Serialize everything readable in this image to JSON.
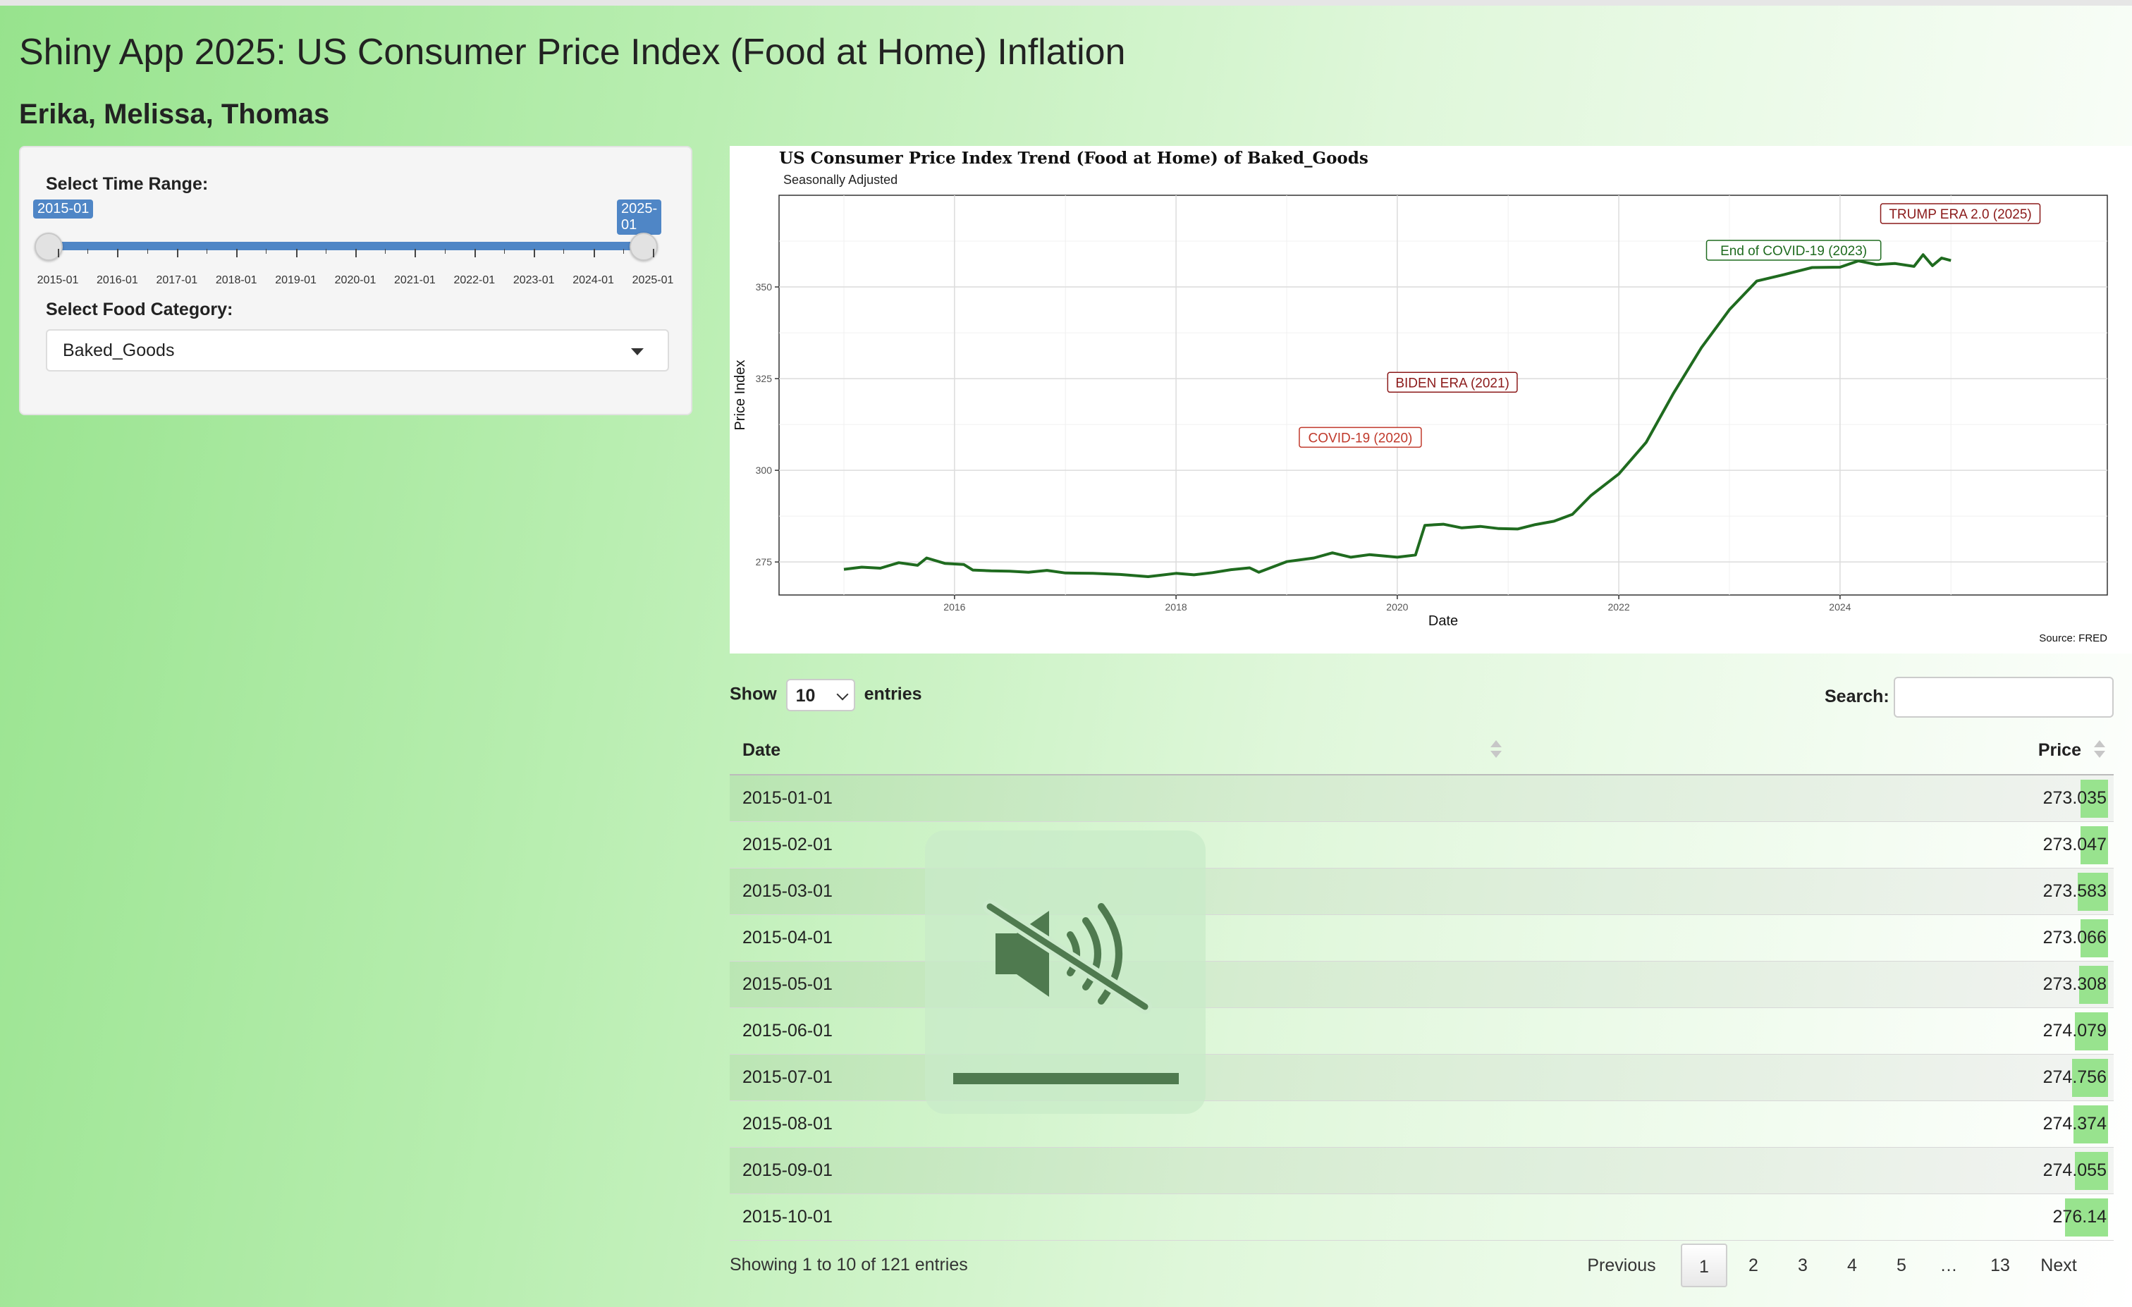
{
  "app": {
    "title": "Shiny App 2025: US Consumer Price Index (Food at Home) Inflation",
    "authors": "Erika, Melissa, Thomas"
  },
  "sidebar": {
    "time_range_label": "Select Time Range:",
    "range_start": "2015-01",
    "range_end": "2025-01",
    "tick_labels": [
      "2015-01",
      "2016-01",
      "2017-01",
      "2018-01",
      "2019-01",
      "2020-01",
      "2021-01",
      "2022-01",
      "2023-01",
      "2024-01",
      "2025-01"
    ],
    "category_label": "Select Food Category:",
    "category_value": "Baked_Goods",
    "accent_color": "#4f86c6"
  },
  "chart_data": {
    "type": "line",
    "title": "US Consumer Price Index Trend (Food at Home) of Baked_Goods",
    "subtitle": "Seasonally Adjusted",
    "xlabel": "Date",
    "ylabel": "Price Index",
    "caption": "Source: FRED",
    "x_ticks": [
      "2016",
      "2018",
      "2020",
      "2022",
      "2024"
    ],
    "y_ticks": [
      275,
      300,
      325,
      350
    ],
    "xlim": [
      "2014-06-01",
      "2026-06-01"
    ],
    "ylim": [
      266,
      375
    ],
    "grid": true,
    "line_color": "#1f6b1f",
    "series": [
      {
        "values": [
          [
            "2015-01-01",
            273.0
          ],
          [
            "2015-03-01",
            273.6
          ],
          [
            "2015-05-01",
            273.3
          ],
          [
            "2015-07-01",
            274.8
          ],
          [
            "2015-09-01",
            274.1
          ],
          [
            "2015-10-01",
            276.1
          ],
          [
            "2015-12-01",
            274.6
          ],
          [
            "2016-02-01",
            274.3
          ],
          [
            "2016-03-01",
            272.8
          ],
          [
            "2016-05-01",
            272.6
          ],
          [
            "2016-07-01",
            272.5
          ],
          [
            "2016-09-01",
            272.2
          ],
          [
            "2016-11-01",
            272.7
          ],
          [
            "2017-01-01",
            272.0
          ],
          [
            "2017-04-01",
            271.9
          ],
          [
            "2017-07-01",
            271.6
          ],
          [
            "2017-10-01",
            271.0
          ],
          [
            "2018-01-01",
            271.9
          ],
          [
            "2018-03-01",
            271.5
          ],
          [
            "2018-05-01",
            272.1
          ],
          [
            "2018-07-01",
            272.9
          ],
          [
            "2018-09-01",
            273.4
          ],
          [
            "2018-10-01",
            272.2
          ],
          [
            "2019-01-01",
            275.1
          ],
          [
            "2019-04-01",
            276.1
          ],
          [
            "2019-06-01",
            277.5
          ],
          [
            "2019-08-01",
            276.3
          ],
          [
            "2019-10-01",
            277.0
          ],
          [
            "2020-01-01",
            276.3
          ],
          [
            "2020-03-01",
            276.9
          ],
          [
            "2020-04-01",
            285.0
          ],
          [
            "2020-06-01",
            285.3
          ],
          [
            "2020-08-01",
            284.3
          ],
          [
            "2020-10-01",
            284.7
          ],
          [
            "2020-12-01",
            284.1
          ],
          [
            "2021-02-01",
            284.0
          ],
          [
            "2021-04-01",
            285.2
          ],
          [
            "2021-06-01",
            286.1
          ],
          [
            "2021-08-01",
            288.0
          ],
          [
            "2021-10-01",
            293.1
          ],
          [
            "2022-01-01",
            299.0
          ],
          [
            "2022-04-01",
            307.6
          ],
          [
            "2022-07-01",
            321.1
          ],
          [
            "2022-10-01",
            333.5
          ],
          [
            "2023-01-01",
            343.8
          ],
          [
            "2023-04-01",
            351.6
          ],
          [
            "2023-07-01",
            353.4
          ],
          [
            "2023-10-01",
            355.3
          ],
          [
            "2024-01-01",
            355.4
          ],
          [
            "2024-03-01",
            357.1
          ],
          [
            "2024-05-01",
            356.1
          ],
          [
            "2024-07-01",
            356.4
          ],
          [
            "2024-09-01",
            355.6
          ],
          [
            "2024-10-01",
            358.8
          ],
          [
            "2024-11-01",
            355.8
          ],
          [
            "2024-12-01",
            357.9
          ],
          [
            "2025-01-01",
            357.2
          ]
        ]
      }
    ],
    "annotations": [
      {
        "text": "COVID-19 (2020)",
        "x": "2019-09-01",
        "y": 309,
        "color": "#c0392b"
      },
      {
        "text": "BIDEN ERA (2021)",
        "x": "2020-07-01",
        "y": 324,
        "color": "#8b1a1a"
      },
      {
        "text": "End of COVID-19 (2023)",
        "x": "2023-08-01",
        "y": 360,
        "color": "#1f6b1f"
      },
      {
        "text": "TRUMP ERA 2.0 (2025)",
        "x": "2025-02-01",
        "y": 370,
        "color": "#8b1a1a"
      }
    ]
  },
  "table": {
    "show_label": "Show",
    "entries_label": "entries",
    "page_length": "10",
    "search_label": "Search:",
    "columns": [
      "Date",
      "Price"
    ],
    "rows": [
      {
        "date": "2015-01-01",
        "price": "273.035",
        "bar": 0.02
      },
      {
        "date": "2015-02-01",
        "price": "273.047",
        "bar": 0.02
      },
      {
        "date": "2015-03-01",
        "price": "273.583",
        "bar": 0.022
      },
      {
        "date": "2015-04-01",
        "price": "273.066",
        "bar": 0.02
      },
      {
        "date": "2015-05-01",
        "price": "273.308",
        "bar": 0.021
      },
      {
        "date": "2015-06-01",
        "price": "274.079",
        "bar": 0.024
      },
      {
        "date": "2015-07-01",
        "price": "274.756",
        "bar": 0.026
      },
      {
        "date": "2015-08-01",
        "price": "274.374",
        "bar": 0.025
      },
      {
        "date": "2015-09-01",
        "price": "274.055",
        "bar": 0.024
      },
      {
        "date": "2015-10-01",
        "price": "276.14",
        "bar": 0.031
      }
    ],
    "info": "Showing 1 to 10 of 121 entries",
    "pagination": {
      "previous": "Previous",
      "pages": [
        "1",
        "2",
        "3",
        "4",
        "5",
        "…",
        "13"
      ],
      "current": "1",
      "next": "Next"
    }
  },
  "overlay": {
    "icon": "speaker-muted-icon",
    "volume_level": 1.0
  }
}
